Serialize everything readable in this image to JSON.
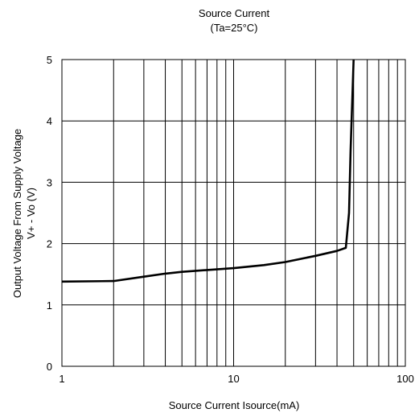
{
  "chart_data": {
    "type": "line",
    "title": "Source Current",
    "subtitle": "(Ta=25°C)",
    "xlabel": "Source Current Isource(mA)",
    "ylabel_line1": "Output Voltage From Supply Voltage",
    "ylabel_line2": "V+ - Vo  (V)",
    "xscale": "log",
    "xlim": [
      1,
      100
    ],
    "ylim": [
      0,
      5
    ],
    "grid": true,
    "x_tick_labels": [
      "1",
      "10",
      "100"
    ],
    "x_tick_values": [
      1,
      10,
      100
    ],
    "y_tick_labels": [
      "0",
      "1",
      "2",
      "3",
      "4",
      "5"
    ],
    "y_tick_values": [
      0,
      1,
      2,
      3,
      4,
      5
    ],
    "series": [
      {
        "x": [
          1,
          2,
          3,
          4,
          5,
          7,
          10,
          15,
          20,
          30,
          40,
          45,
          47,
          48,
          50
        ],
        "y": [
          1.38,
          1.39,
          1.46,
          1.51,
          1.54,
          1.57,
          1.6,
          1.65,
          1.7,
          1.8,
          1.88,
          1.93,
          2.5,
          3.5,
          5.0
        ]
      }
    ]
  }
}
